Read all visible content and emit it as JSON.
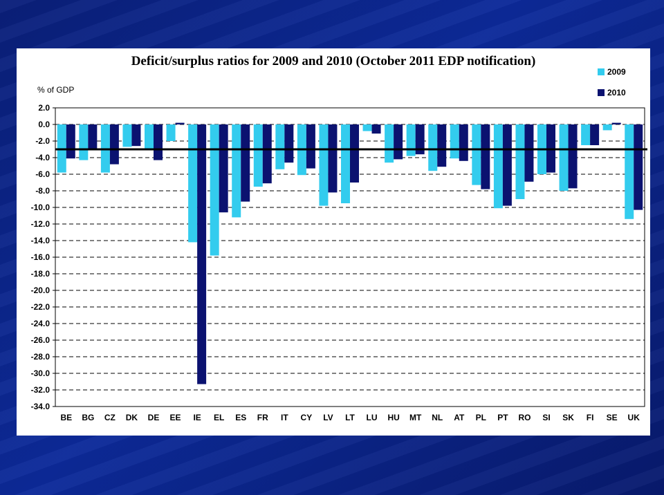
{
  "chart_data": {
    "type": "bar",
    "title": "Deficit/surplus ratios for 2009 and 2010 (October 2011 EDP notification)",
    "ylabel": "% of GDP",
    "xlabel": "",
    "ylim": [
      -34,
      2
    ],
    "ytick_step": 2,
    "ytick_labels": [
      "2.0",
      "0.0",
      "-2.0",
      "-4.0",
      "-6.0",
      "-8.0",
      "-10.0",
      "-12.0",
      "-14.0",
      "-16.0",
      "-18.0",
      "-20.0",
      "-22.0",
      "-24.0",
      "-26.0",
      "-28.0",
      "-30.0",
      "-32.0",
      "-34.0"
    ],
    "grid": "dashed-horizontal",
    "legend": "top-right",
    "reference_line": -3,
    "categories": [
      "BE",
      "BG",
      "CZ",
      "DK",
      "DE",
      "EE",
      "IE",
      "EL",
      "ES",
      "FR",
      "IT",
      "CY",
      "LV",
      "LT",
      "LU",
      "HU",
      "MT",
      "NL",
      "AT",
      "PL",
      "PT",
      "RO",
      "SI",
      "SK",
      "FI",
      "SE",
      "UK"
    ],
    "series": [
      {
        "name": "2009",
        "color": "#33ccee",
        "values": [
          -5.8,
          -4.3,
          -5.8,
          -2.7,
          -3.1,
          -2.0,
          -14.2,
          -15.8,
          -11.2,
          -7.5,
          -5.4,
          -6.1,
          -9.8,
          -9.5,
          -0.8,
          -4.6,
          -3.8,
          -5.6,
          -4.1,
          -7.3,
          -10.1,
          -9.0,
          -6.0,
          -8.0,
          -2.5,
          -0.7,
          -11.4
        ]
      },
      {
        "name": "2010",
        "color": "#0b1270",
        "values": [
          -4.1,
          -3.1,
          -4.8,
          -2.6,
          -4.3,
          0.2,
          -31.3,
          -10.6,
          -9.3,
          -7.1,
          -4.6,
          -5.3,
          -8.2,
          -7.0,
          -1.1,
          -4.2,
          -3.6,
          -5.1,
          -4.4,
          -7.8,
          -9.8,
          -6.9,
          -5.8,
          -7.7,
          -2.5,
          0.2,
          -10.3
        ]
      }
    ]
  }
}
